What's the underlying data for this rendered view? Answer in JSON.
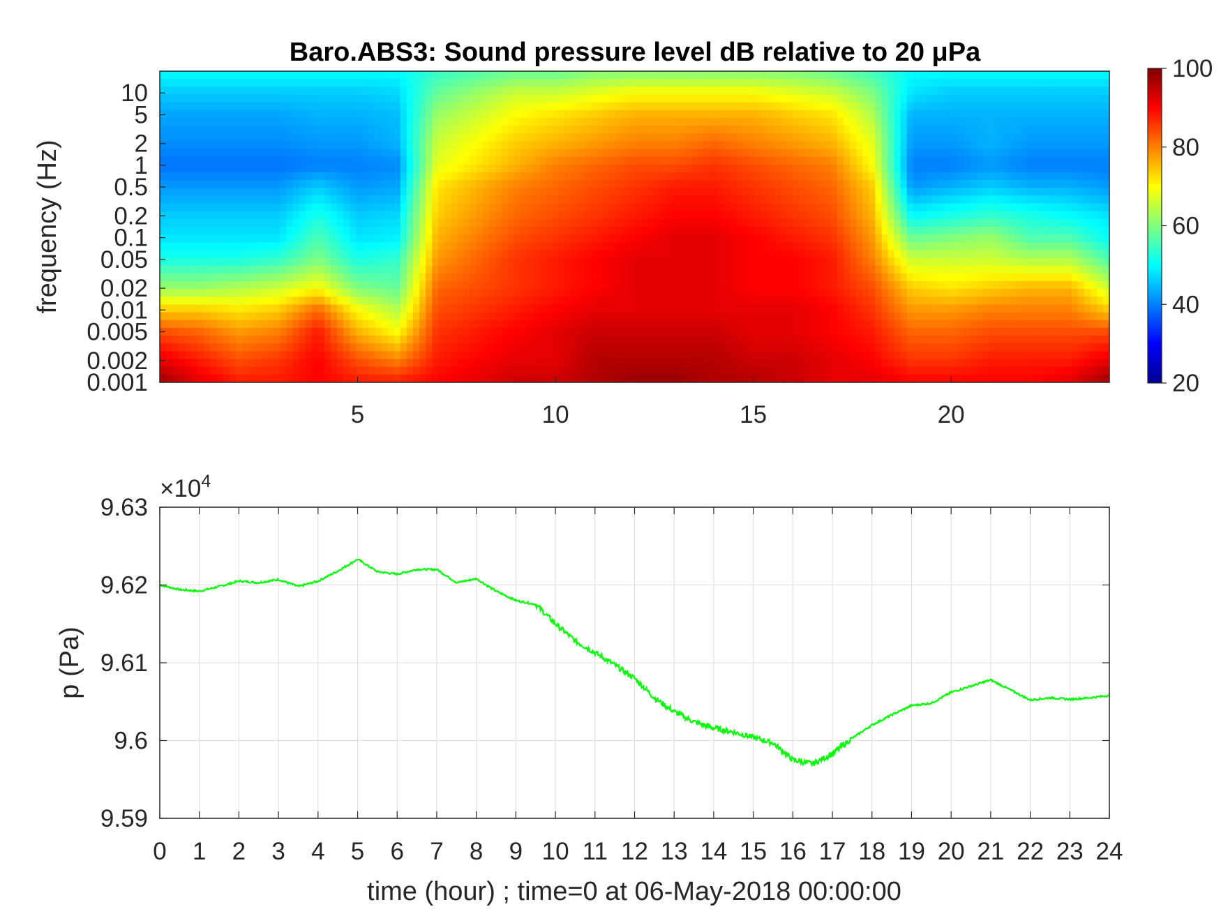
{
  "chart_data": [
    {
      "type": "heatmap",
      "title": "Baro.ABS3: Sound pressure level dB relative to 20 μPa",
      "xlabel": "",
      "ylabel": "frequency (Hz)",
      "x_scale": "linear",
      "y_scale": "log",
      "xlim": [
        0,
        24
      ],
      "ylim": [
        0.001,
        20
      ],
      "x_ticks": [
        5,
        10,
        15,
        20
      ],
      "y_ticks": [
        0.001,
        0.002,
        0.005,
        0.01,
        0.02,
        0.05,
        0.1,
        0.2,
        0.5,
        1,
        2,
        5,
        10
      ],
      "y_tick_labels": [
        "0.001",
        "0.002",
        "0.005",
        "0.01",
        "0.02",
        "0.05",
        "0.1",
        "0.2",
        "0.5",
        "1",
        "2",
        "5",
        "10"
      ],
      "colorbar": {
        "range": [
          20,
          100
        ],
        "ticks": [
          20,
          40,
          60,
          80,
          100
        ],
        "colormap": "jet"
      },
      "z_rows_freq_high_to_low": [
        20,
        10,
        5,
        2,
        1,
        0.5,
        0.2,
        0.1,
        0.05,
        0.02,
        0.01,
        0.005,
        0.002,
        0.001
      ],
      "z_cols_hours": [
        0,
        1,
        2,
        3,
        4,
        5,
        6,
        7,
        8,
        9,
        10,
        11,
        12,
        13,
        14,
        15,
        16,
        17,
        18,
        19,
        20,
        21,
        22,
        23,
        24
      ],
      "z": [
        [
          50,
          50,
          50,
          50,
          50,
          50,
          50,
          54,
          56,
          58,
          58,
          60,
          60,
          60,
          60,
          60,
          60,
          58,
          55,
          50,
          50,
          50,
          50,
          50,
          50
        ],
        [
          46,
          46,
          46,
          46,
          46,
          46,
          47,
          58,
          62,
          66,
          66,
          68,
          70,
          70,
          70,
          70,
          68,
          66,
          60,
          48,
          46,
          46,
          46,
          46,
          46
        ],
        [
          43,
          43,
          43,
          43,
          44,
          44,
          45,
          62,
          66,
          70,
          72,
          74,
          76,
          76,
          76,
          76,
          74,
          72,
          64,
          44,
          44,
          44,
          44,
          44,
          44
        ],
        [
          41,
          41,
          41,
          41,
          42,
          42,
          44,
          66,
          70,
          74,
          76,
          78,
          80,
          80,
          82,
          80,
          78,
          76,
          68,
          42,
          42,
          44,
          42,
          42,
          42
        ],
        [
          39,
          39,
          39,
          39,
          40,
          40,
          41,
          68,
          72,
          76,
          80,
          82,
          84,
          84,
          86,
          84,
          82,
          80,
          70,
          40,
          40,
          42,
          40,
          40,
          40
        ],
        [
          42,
          42,
          42,
          42,
          46,
          42,
          43,
          72,
          76,
          80,
          82,
          84,
          86,
          88,
          88,
          86,
          84,
          82,
          74,
          42,
          44,
          46,
          44,
          44,
          42
        ],
        [
          46,
          46,
          46,
          46,
          52,
          46,
          47,
          74,
          78,
          82,
          84,
          86,
          88,
          90,
          90,
          88,
          86,
          84,
          76,
          50,
          52,
          54,
          52,
          50,
          48
        ],
        [
          48,
          48,
          48,
          48,
          56,
          48,
          49,
          76,
          80,
          84,
          86,
          88,
          90,
          92,
          92,
          90,
          88,
          86,
          78,
          58,
          60,
          62,
          56,
          56,
          50
        ],
        [
          52,
          52,
          52,
          54,
          60,
          52,
          54,
          78,
          82,
          86,
          88,
          90,
          92,
          92,
          92,
          90,
          90,
          88,
          80,
          66,
          66,
          66,
          64,
          64,
          56
        ],
        [
          62,
          62,
          64,
          66,
          70,
          60,
          58,
          82,
          84,
          86,
          88,
          90,
          92,
          92,
          92,
          90,
          90,
          88,
          84,
          74,
          72,
          74,
          76,
          76,
          66
        ],
        [
          74,
          74,
          72,
          74,
          82,
          70,
          64,
          84,
          86,
          88,
          90,
          92,
          92,
          92,
          92,
          92,
          92,
          90,
          86,
          78,
          78,
          80,
          80,
          80,
          74
        ],
        [
          84,
          82,
          78,
          80,
          88,
          76,
          70,
          86,
          88,
          90,
          92,
          94,
          94,
          94,
          94,
          92,
          92,
          90,
          88,
          82,
          82,
          84,
          84,
          84,
          84
        ],
        [
          92,
          88,
          84,
          86,
          90,
          84,
          80,
          88,
          90,
          92,
          92,
          96,
          96,
          96,
          96,
          94,
          94,
          92,
          90,
          86,
          86,
          88,
          88,
          88,
          92
        ],
        [
          98,
          92,
          88,
          88,
          90,
          88,
          88,
          90,
          92,
          94,
          94,
          96,
          98,
          98,
          96,
          96,
          94,
          92,
          92,
          90,
          90,
          90,
          90,
          92,
          98
        ]
      ]
    },
    {
      "type": "line",
      "title": "",
      "xlabel": "time (hour) ; time=0 at 06-May-2018 00:00:00",
      "ylabel": "p (Pa)",
      "multiplier": "×10",
      "multiplier_exp": "4",
      "xlim": [
        0,
        24
      ],
      "ylim": [
        95900,
        96300
      ],
      "x_ticks": [
        0,
        1,
        2,
        3,
        4,
        5,
        6,
        7,
        8,
        9,
        10,
        11,
        12,
        13,
        14,
        15,
        16,
        17,
        18,
        19,
        20,
        21,
        22,
        23,
        24
      ],
      "y_ticks": [
        95900,
        96000,
        96100,
        96200,
        96300
      ],
      "y_tick_labels": [
        "9.59",
        "9.6",
        "9.61",
        "9.62",
        "9.63"
      ],
      "grid": true,
      "series": [
        {
          "color": "#00ff00",
          "x": [
            0,
            0.5,
            1,
            1.5,
            2,
            2.5,
            3,
            3.5,
            4,
            4.5,
            5,
            5.5,
            6,
            6.5,
            7,
            7.5,
            8,
            8.5,
            9,
            9.5,
            10,
            10.5,
            11,
            11.5,
            12,
            12.5,
            13,
            13.5,
            14,
            14.5,
            15,
            15.5,
            16,
            16.5,
            17,
            17.5,
            18,
            18.5,
            19,
            19.5,
            20,
            20.5,
            21,
            21.5,
            22,
            22.5,
            23,
            23.5,
            24
          ],
          "y": [
            96200,
            96194,
            96192,
            96198,
            96205,
            96203,
            96207,
            96198,
            96205,
            96218,
            96233,
            96217,
            96214,
            96220,
            96220,
            96203,
            96208,
            96192,
            96180,
            96175,
            96150,
            96128,
            96113,
            96097,
            96080,
            96055,
            96037,
            96024,
            96016,
            96011,
            96004,
            95997,
            95975,
            95970,
            95983,
            96003,
            96020,
            96033,
            96045,
            96048,
            96062,
            96070,
            96078,
            96065,
            96052,
            96055,
            96053,
            96055,
            96058
          ]
        }
      ]
    }
  ]
}
